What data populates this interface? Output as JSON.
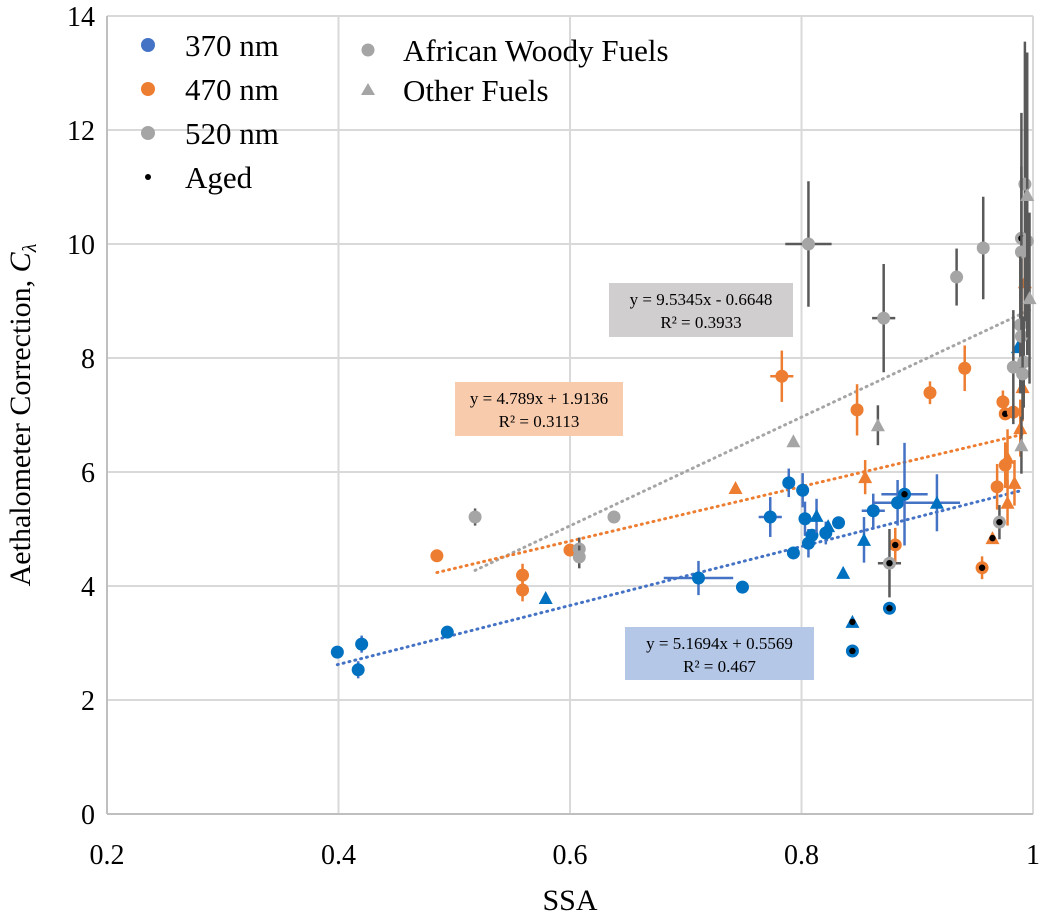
{
  "chart_data": {
    "type": "scatter",
    "title": "",
    "xlabel": "SSA",
    "ylabel_main": "Aethalometer Correction, ",
    "ylabel_symbol": "C",
    "ylabel_subscript": "λ",
    "xlim": [
      0.2,
      1.0
    ],
    "ylim": [
      0,
      14
    ],
    "xticks": [
      0.2,
      0.4,
      0.6,
      0.8,
      1
    ],
    "xtick_labels": [
      "0.2",
      "0.4",
      "0.6",
      "0.8",
      "1"
    ],
    "yticks": [
      0,
      2,
      4,
      6,
      8,
      10,
      12,
      14
    ],
    "ytick_labels": [
      "0",
      "2",
      "4",
      "6",
      "8",
      "10",
      "12",
      "14"
    ],
    "grid": true,
    "legend_placement": "top-left",
    "legend": {
      "wavelengths": [
        {
          "label": "370 nm",
          "color": "#4472C4",
          "marker": "circle"
        },
        {
          "label": "470 nm",
          "color": "#ED7D31",
          "marker": "circle"
        },
        {
          "label": "520 nm",
          "color": "#A5A5A5",
          "marker": "circle"
        },
        {
          "label": "Aged",
          "color": "#000000",
          "marker": "dot"
        }
      ],
      "fuels": [
        {
          "label": "African Woody Fuels",
          "color": "#A5A5A5",
          "marker": "circle"
        },
        {
          "label": "Other Fuels",
          "color": "#A5A5A5",
          "marker": "triangle"
        }
      ]
    },
    "series": [
      {
        "name": "370 nm",
        "color": "#0070C0",
        "errcolor": "#4472C4",
        "points": [
          {
            "x": 0.399,
            "y": 2.84,
            "m": "c"
          },
          {
            "x": 0.42,
            "y": 2.98,
            "m": "c",
            "ye": 0.15
          },
          {
            "x": 0.417,
            "y": 2.53,
            "m": "c",
            "ye": 0.15
          },
          {
            "x": 0.494,
            "y": 3.19,
            "m": "c"
          },
          {
            "x": 0.711,
            "y": 4.14,
            "m": "c",
            "ye": 0.3,
            "xe": 0.03
          },
          {
            "x": 0.749,
            "y": 3.98,
            "m": "c",
            "ye": 0.1
          },
          {
            "x": 0.773,
            "y": 5.21,
            "m": "c",
            "ye": 0.35,
            "xe": 0.01
          },
          {
            "x": 0.789,
            "y": 5.81,
            "m": "c",
            "ye": 0.25
          },
          {
            "x": 0.793,
            "y": 4.58,
            "m": "c"
          },
          {
            "x": 0.801,
            "y": 5.68,
            "m": "c",
            "ye": 0.3
          },
          {
            "x": 0.803,
            "y": 5.18,
            "m": "c",
            "ye": 0.3
          },
          {
            "x": 0.806,
            "y": 4.75,
            "m": "c",
            "ye": 0.25
          },
          {
            "x": 0.809,
            "y": 4.89,
            "m": "c"
          },
          {
            "x": 0.821,
            "y": 4.93,
            "m": "c",
            "ye": 0.2
          },
          {
            "x": 0.832,
            "y": 5.11,
            "m": "c"
          },
          {
            "x": 0.862,
            "y": 5.32,
            "m": "c",
            "ye": 0.3,
            "xe": 0.01
          },
          {
            "x": 0.883,
            "y": 5.46,
            "m": "c",
            "ye": 0.4,
            "xe": 0.02
          },
          {
            "x": 0.889,
            "y": 5.61,
            "m": "c",
            "ye": 0.9,
            "xe": 0.02,
            "aged": true
          },
          {
            "x": 0.876,
            "y": 3.61,
            "m": "c",
            "ye": 0.1,
            "aged": true
          },
          {
            "x": 0.844,
            "y": 2.86,
            "m": "c",
            "aged": true
          },
          {
            "x": 0.579,
            "y": 3.79,
            "m": "t"
          },
          {
            "x": 0.813,
            "y": 5.23,
            "m": "t",
            "ye": 0.3
          },
          {
            "x": 0.823,
            "y": 5.05,
            "m": "t"
          },
          {
            "x": 0.854,
            "y": 4.81,
            "m": "t",
            "ye": 0.4
          },
          {
            "x": 0.836,
            "y": 4.23,
            "m": "t"
          },
          {
            "x": 0.917,
            "y": 5.46,
            "m": "t",
            "ye": 0.5,
            "xe": 0.02
          },
          {
            "x": 0.844,
            "y": 3.37,
            "m": "t",
            "aged": true
          },
          {
            "x": 0.987,
            "y": 8.19,
            "m": "t"
          }
        ]
      },
      {
        "name": "470 nm",
        "color": "#ED7D31",
        "errcolor": "#ED7D31",
        "points": [
          {
            "x": 0.485,
            "y": 4.53,
            "m": "c"
          },
          {
            "x": 0.559,
            "y": 4.19,
            "m": "c",
            "ye": 0.2
          },
          {
            "x": 0.559,
            "y": 3.93,
            "m": "c",
            "ye": 0.2
          },
          {
            "x": 0.6,
            "y": 4.63,
            "m": "c"
          },
          {
            "x": 0.783,
            "y": 7.68,
            "m": "c",
            "ye": 0.45,
            "xe": 0.01
          },
          {
            "x": 0.848,
            "y": 7.09,
            "m": "c",
            "ye": 0.45
          },
          {
            "x": 0.911,
            "y": 7.39,
            "m": "c",
            "ye": 0.2
          },
          {
            "x": 0.941,
            "y": 7.82,
            "m": "c",
            "ye": 0.4
          },
          {
            "x": 0.974,
            "y": 7.23,
            "m": "c",
            "ye": 0.2
          },
          {
            "x": 0.976,
            "y": 7.02,
            "m": "c",
            "aged": true
          },
          {
            "x": 0.983,
            "y": 7.05,
            "m": "c"
          },
          {
            "x": 0.976,
            "y": 6.12,
            "m": "c",
            "ye": 0.4
          },
          {
            "x": 0.969,
            "y": 5.74,
            "m": "c",
            "ye": 0.4
          },
          {
            "x": 0.956,
            "y": 4.32,
            "m": "c",
            "ye": 0.2,
            "aged": true
          },
          {
            "x": 0.881,
            "y": 4.72,
            "m": "c",
            "ye": 0.3,
            "aged": true
          },
          {
            "x": 0.743,
            "y": 5.72,
            "m": "t"
          },
          {
            "x": 0.855,
            "y": 5.91,
            "m": "t",
            "ye": 0.3
          },
          {
            "x": 0.993,
            "y": 9.33,
            "m": "t",
            "ye": 0.6
          },
          {
            "x": 0.991,
            "y": 7.49,
            "m": "t",
            "ye": 0.6
          },
          {
            "x": 0.989,
            "y": 6.77,
            "m": "t",
            "ye": 0.5
          },
          {
            "x": 0.978,
            "y": 6.25,
            "m": "t",
            "ye": 0.5
          },
          {
            "x": 0.984,
            "y": 5.81,
            "m": "t",
            "ye": 0.4
          },
          {
            "x": 0.978,
            "y": 5.46,
            "m": "t",
            "ye": 0.4
          },
          {
            "x": 0.965,
            "y": 4.84,
            "m": "t",
            "aged": true
          }
        ]
      },
      {
        "name": "520 nm",
        "color": "#A5A5A5",
        "errcolor": "#595959",
        "points": [
          {
            "x": 0.518,
            "y": 5.21,
            "m": "c",
            "ye": 0.15
          },
          {
            "x": 0.608,
            "y": 4.65,
            "m": "c",
            "ye": 0.2
          },
          {
            "x": 0.608,
            "y": 4.51,
            "m": "c",
            "ye": 0.2
          },
          {
            "x": 0.638,
            "y": 5.21,
            "m": "c"
          },
          {
            "x": 0.806,
            "y": 10.0,
            "m": "c",
            "ye": 1.1,
            "xe": 0.02
          },
          {
            "x": 0.871,
            "y": 8.7,
            "m": "c",
            "ye": 0.95,
            "xe": 0.01
          },
          {
            "x": 0.934,
            "y": 9.42,
            "m": "c",
            "ye": 0.5
          },
          {
            "x": 0.957,
            "y": 9.93,
            "m": "c",
            "ye": 0.9
          },
          {
            "x": 0.993,
            "y": 11.05,
            "m": "c",
            "ye": 2.5
          },
          {
            "x": 0.99,
            "y": 10.1,
            "m": "c",
            "ye": 2.2,
            "aged": true
          },
          {
            "x": 0.995,
            "y": 10.05,
            "m": "c",
            "ye": 2.0
          },
          {
            "x": 0.99,
            "y": 9.86,
            "m": "c",
            "ye": 1.5
          },
          {
            "x": 0.989,
            "y": 8.58,
            "m": "c",
            "ye": 1.2
          },
          {
            "x": 0.99,
            "y": 8.38,
            "m": "c",
            "ye": 1.0
          },
          {
            "x": 0.983,
            "y": 7.84,
            "m": "c",
            "ye": 1.0
          },
          {
            "x": 0.992,
            "y": 7.93,
            "m": "c",
            "ye": 0.8
          },
          {
            "x": 0.991,
            "y": 7.72,
            "m": "c",
            "ye": 0.8
          },
          {
            "x": 0.971,
            "y": 5.12,
            "m": "c",
            "ye": 0.3,
            "aged": true
          },
          {
            "x": 0.876,
            "y": 4.4,
            "m": "c",
            "ye": 0.6,
            "xe": 0.01,
            "aged": true
          },
          {
            "x": 0.793,
            "y": 6.54,
            "m": "t"
          },
          {
            "x": 0.866,
            "y": 6.82,
            "m": "t",
            "ye": 0.35
          },
          {
            "x": 0.995,
            "y": 10.86,
            "m": "t",
            "ye": 2.5
          },
          {
            "x": 0.997,
            "y": 9.05,
            "m": "t",
            "ye": 1.5
          },
          {
            "x": 0.99,
            "y": 6.47,
            "m": "t",
            "ye": 0.5
          }
        ]
      }
    ],
    "trendlines": [
      {
        "series": "520 nm",
        "slope": 9.5345,
        "intercept": -0.6648,
        "x_range": [
          0.518,
          0.997
        ],
        "color": "#A5A5A5",
        "label_eq": "y = 9.5345x - 0.6648",
        "label_r2": "R² = 0.3933",
        "box_color": "#D0CECE"
      },
      {
        "series": "470 nm",
        "slope": 4.789,
        "intercept": 1.9136,
        "x_range": [
          0.485,
          0.993
        ],
        "color": "#ED7D31",
        "label_eq": "y = 4.789x + 1.9136",
        "label_r2": "R² = 0.3113",
        "box_color": "#F8CBAD"
      },
      {
        "series": "370 nm",
        "slope": 5.1694,
        "intercept": 0.5569,
        "x_range": [
          0.399,
          0.99
        ],
        "color": "#4472C4",
        "label_eq": "y = 5.1694x + 0.5569",
        "label_r2": "R² = 0.467",
        "box_color": "#B4C7E7"
      }
    ]
  }
}
